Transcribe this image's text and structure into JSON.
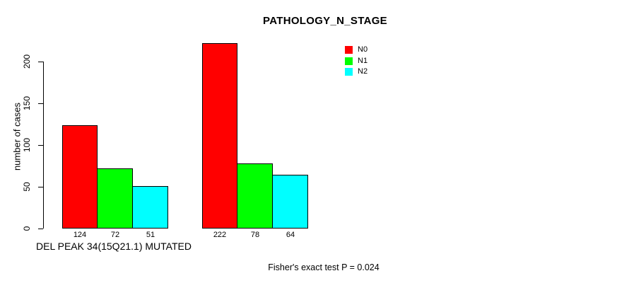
{
  "chart_data": {
    "type": "bar",
    "title": "PATHOLOGY_N_STAGE",
    "ylabel": "number of cases",
    "xlabel": "DEL PEAK 34(15Q21.1) MUTATED",
    "annotation": "Fisher's exact test P = 0.024",
    "yticks": [
      0,
      50,
      100,
      150,
      200
    ],
    "ylim": [
      0,
      225
    ],
    "grid": false,
    "legend_position": "top-right",
    "categories": [
      "DEL PEAK 34(15Q21.1) MUTATED",
      ""
    ],
    "series": [
      {
        "name": "N0",
        "color": "#ff0000",
        "values": [
          124,
          222
        ]
      },
      {
        "name": "N1",
        "color": "#00ff00",
        "values": [
          72,
          78
        ]
      },
      {
        "name": "N2",
        "color": "#00ffff",
        "values": [
          51,
          64
        ]
      }
    ]
  },
  "colors": {
    "background": "#ffffff",
    "text": "#000000",
    "axis": "#000000",
    "bar_border": "#000000"
  }
}
